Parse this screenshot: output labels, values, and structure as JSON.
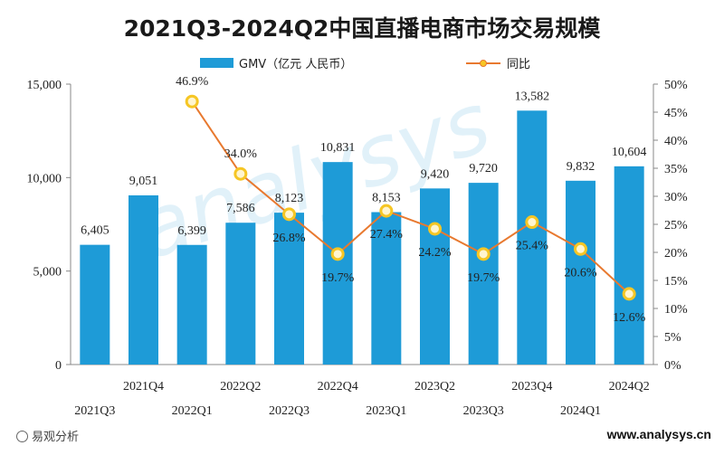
{
  "title": "2021Q3-2024Q2中国直播电商市场交易规模",
  "footer": {
    "logo_text": "易观分析",
    "url": "www.analysys.cn"
  },
  "watermark": "analysys 易观分析",
  "chart_data": {
    "type": "bar+line",
    "title": "2021Q3-2024Q2中国直播电商市场交易规模",
    "categories": [
      "2021Q3",
      "2021Q4",
      "2022Q1",
      "2022Q2",
      "2022Q3",
      "2022Q4",
      "2023Q1",
      "2023Q2",
      "2023Q3",
      "2023Q4",
      "2024Q1",
      "2024Q2"
    ],
    "series": [
      {
        "name": "GMV（亿元 人民币）",
        "type": "bar",
        "axis": "left",
        "color": "#1e9bd7",
        "values": [
          6405,
          9051,
          6399,
          7586,
          8123,
          10831,
          8153,
          9420,
          9720,
          13582,
          9832,
          10604
        ],
        "labels": [
          "6,405",
          "9,051",
          "6,399",
          "7,586",
          "8,123",
          "10,831",
          "8,153",
          "9,420",
          "9,720",
          "13,582",
          "9,832",
          "10,604"
        ]
      },
      {
        "name": "同比",
        "type": "line",
        "axis": "right",
        "color": "#e8792f",
        "marker_color": "#f6c624",
        "values": [
          null,
          null,
          46.9,
          34.0,
          26.8,
          19.7,
          27.4,
          24.2,
          19.7,
          25.4,
          20.6,
          12.6
        ],
        "labels": [
          "",
          "",
          "46.9%",
          "34.0%",
          "26.8%",
          "19.7%",
          "27.4%",
          "24.2%",
          "19.7%",
          "25.4%",
          "20.6%",
          "12.6%"
        ]
      }
    ],
    "y_left": {
      "min": 0,
      "max": 15000,
      "ticks": [
        "0",
        "5,000",
        "10,000",
        "15,000"
      ]
    },
    "y_right": {
      "min": 0,
      "max": 50,
      "ticks": [
        "0%",
        "5%",
        "10%",
        "15%",
        "20%",
        "25%",
        "30%",
        "35%",
        "40%",
        "45%",
        "50%"
      ]
    },
    "legend_position": "top"
  }
}
